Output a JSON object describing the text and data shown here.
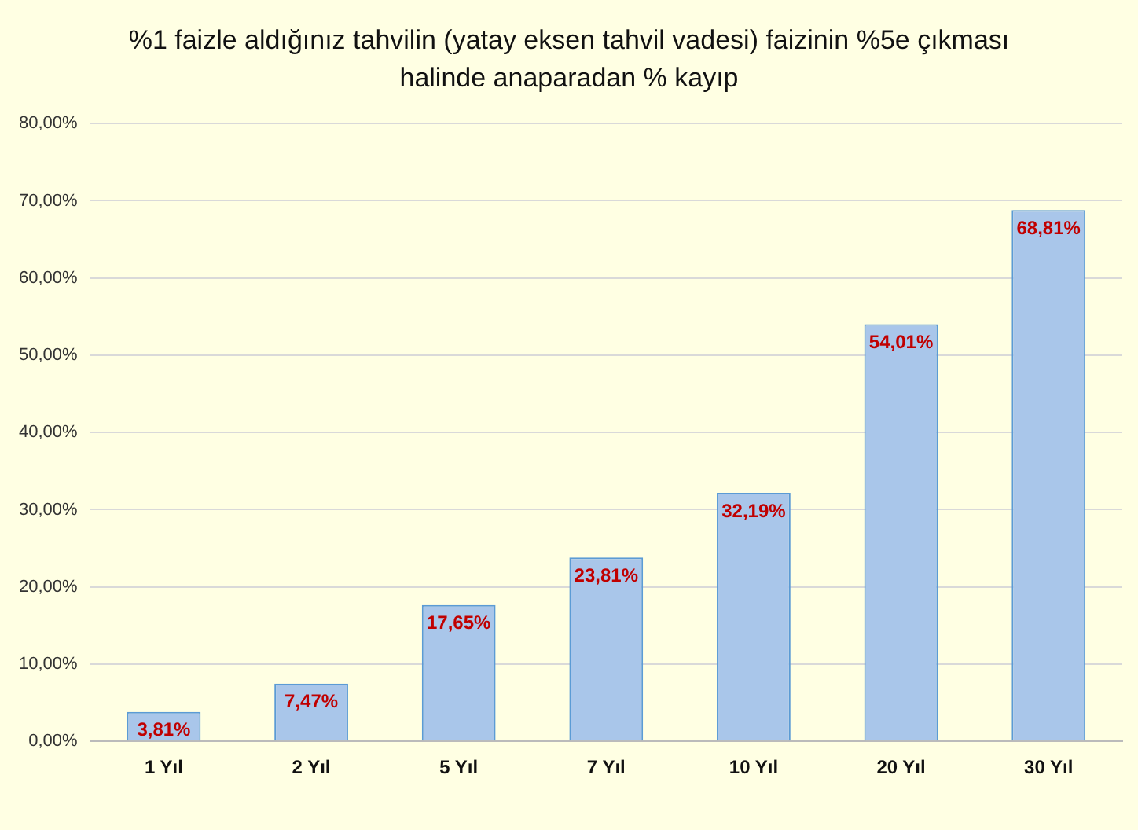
{
  "chart_data": {
    "type": "bar",
    "title": "%1 faizle aldığınız tahvilin (yatay eksen tahvil vadesi) faizinin %5e çıkması halinde anaparadan % kayıp",
    "categories": [
      "1 Yıl",
      "2 Yıl",
      "5 Yıl",
      "7 Yıl",
      "10 Yıl",
      "20 Yıl",
      "30 Yıl"
    ],
    "values": [
      3.81,
      7.47,
      17.65,
      23.81,
      32.19,
      54.01,
      68.81
    ],
    "value_labels": [
      "3,81%",
      "7,47%",
      "17,65%",
      "23,81%",
      "32,19%",
      "54,01%",
      "68,81%"
    ],
    "color": "#a9c6ea",
    "ylim": [
      0,
      80
    ],
    "yticks": [
      {
        "value": 0,
        "label": "0,00%"
      },
      {
        "value": 10,
        "label": "10,00%"
      },
      {
        "value": 20,
        "label": "20,00%"
      },
      {
        "value": 30,
        "label": "30,00%"
      },
      {
        "value": 40,
        "label": "40,00%"
      },
      {
        "value": 50,
        "label": "50,00%"
      },
      {
        "value": 60,
        "label": "60,00%"
      },
      {
        "value": 70,
        "label": "70,00%"
      },
      {
        "value": 80,
        "label": "80,00%"
      }
    ],
    "grid": "y",
    "legend": false
  }
}
